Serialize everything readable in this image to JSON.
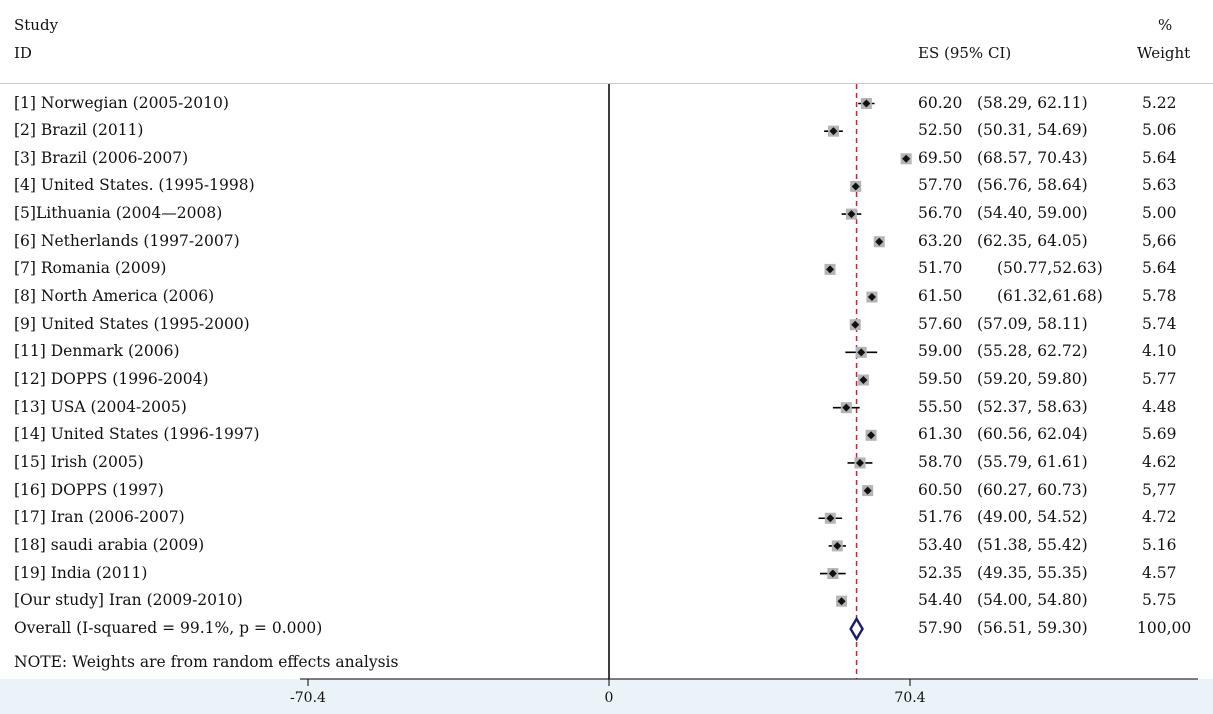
{
  "header": {
    "study_line1": "Study",
    "study_line2": "ID",
    "es_label": "ES (95% CI)",
    "weight_line1": "%",
    "weight_line2": "Weight"
  },
  "note": "NOTE: Weights are from random effects analysis",
  "colors": {
    "marker": "#111111",
    "box": "#b4b4b4",
    "reference_line": "#b03040",
    "diamond": "#1a1a6e",
    "axis_band": "#eaf3f8"
  },
  "chart_data": {
    "type": "forest",
    "x_ticks": [
      {
        "value": -70.4,
        "label": "-70.4"
      },
      {
        "value": 0,
        "label": "0"
      },
      {
        "value": 70.4,
        "label": "70.4"
      }
    ],
    "null_line": 0,
    "overall_line": 57.9,
    "studies": [
      {
        "id": "[1] Norwegian (2005-2010)",
        "es": 60.2,
        "lo": 58.29,
        "hi": 62.11,
        "es_text": "60.20",
        "ci_text": "(58.29,  62.11)",
        "weight": "5.22"
      },
      {
        "id": "[2] Brazil (2011)",
        "es": 52.5,
        "lo": 50.31,
        "hi": 54.69,
        "es_text": "52.50",
        "ci_text": "(50.31,  54.69)",
        "weight": "5.06"
      },
      {
        "id": "[3] Brazil (2006-2007)",
        "es": 69.5,
        "lo": 68.57,
        "hi": 70.43,
        "es_text": "69.50",
        "ci_text": "(68.57,  70.43)",
        "weight": "5.64"
      },
      {
        "id": "[4] United States. (1995-1998)",
        "es": 57.7,
        "lo": 56.76,
        "hi": 58.64,
        "es_text": "57.70",
        "ci_text": "(56.76,  58.64)",
        "weight": "5.63"
      },
      {
        "id": "[5]Lithuania (2004—2008)",
        "es": 56.7,
        "lo": 54.4,
        "hi": 59.0,
        "es_text": "56.70",
        "ci_text": "(54.40,  59.00)",
        "weight": "5.00"
      },
      {
        "id": "[6] Netherlands (1997-2007)",
        "es": 63.2,
        "lo": 62.35,
        "hi": 64.05,
        "es_text": "63.20",
        "ci_text": "(62.35,  64.05)",
        "weight": "5,66"
      },
      {
        "id": "[7] Romania (2009)",
        "es": 51.7,
        "lo": 50.77,
        "hi": 52.63,
        "es_text": "51.70",
        "ci_text": "(50.77,52.63)",
        "weight": "5.64"
      },
      {
        "id": "[8] North America (2006)",
        "es": 61.5,
        "lo": 61.32,
        "hi": 61.68,
        "es_text": "61.50",
        "ci_text": "(61.32,61.68)",
        "weight": "5.78"
      },
      {
        "id": "[9] United States (1995-2000)",
        "es": 57.6,
        "lo": 57.09,
        "hi": 58.11,
        "es_text": "57.60",
        "ci_text": "(57.09,  58.11)",
        "weight": "5.74"
      },
      {
        "id": "[11] Denmark (2006)",
        "es": 59.0,
        "lo": 55.28,
        "hi": 62.72,
        "es_text": "59.00",
        "ci_text": "(55.28,  62.72)",
        "weight": "4.10"
      },
      {
        "id": "[12] DOPPS (1996-2004)",
        "es": 59.5,
        "lo": 59.2,
        "hi": 59.8,
        "es_text": "59.50",
        "ci_text": "(59.20,  59.80)",
        "weight": "5.77"
      },
      {
        "id": "[13] USA (2004-2005)",
        "es": 55.5,
        "lo": 52.37,
        "hi": 58.63,
        "es_text": "55.50",
        "ci_text": "(52.37,  58.63)",
        "weight": "4.48"
      },
      {
        "id": "[14] United States (1996-1997)",
        "es": 61.3,
        "lo": 60.56,
        "hi": 62.04,
        "es_text": "61.30",
        "ci_text": "(60.56,  62.04)",
        "weight": "5.69"
      },
      {
        "id": "[15] Irish (2005)",
        "es": 58.7,
        "lo": 55.79,
        "hi": 61.61,
        "es_text": "58.70",
        "ci_text": "(55.79,  61.61)",
        "weight": "4.62"
      },
      {
        "id": "[16] DOPPS (1997)",
        "es": 60.5,
        "lo": 60.27,
        "hi": 60.73,
        "es_text": "60.50",
        "ci_text": "(60.27,  60.73)",
        "weight": "5,77"
      },
      {
        "id": "[17] Iran (2006-2007)",
        "es": 51.76,
        "lo": 49.0,
        "hi": 54.52,
        "es_text": "51.76",
        "ci_text": "(49.00,  54.52)",
        "weight": "4.72"
      },
      {
        "id": "[18] saudi arabia (2009)",
        "es": 53.4,
        "lo": 51.38,
        "hi": 55.42,
        "es_text": "53.40",
        "ci_text": "(51.38,  55.42)",
        "weight": "5.16"
      },
      {
        "id": "[19] India (2011)",
        "es": 52.35,
        "lo": 49.35,
        "hi": 55.35,
        "es_text": "52.35",
        "ci_text": "(49.35,  55.35)",
        "weight": "4.57"
      },
      {
        "id": "[Our study] Iran (2009-2010)",
        "es": 54.4,
        "lo": 54.0,
        "hi": 54.8,
        "es_text": "54.40",
        "ci_text": "(54.00,  54.80)",
        "weight": "5.75"
      }
    ],
    "overall": {
      "id": "Overall (I-squared = 99.1%, p = 0.000)",
      "es": 57.9,
      "lo": 56.51,
      "hi": 59.3,
      "es_text": "57.90",
      "ci_text": "(56.51,  59.30)",
      "weight": "100,00"
    }
  }
}
